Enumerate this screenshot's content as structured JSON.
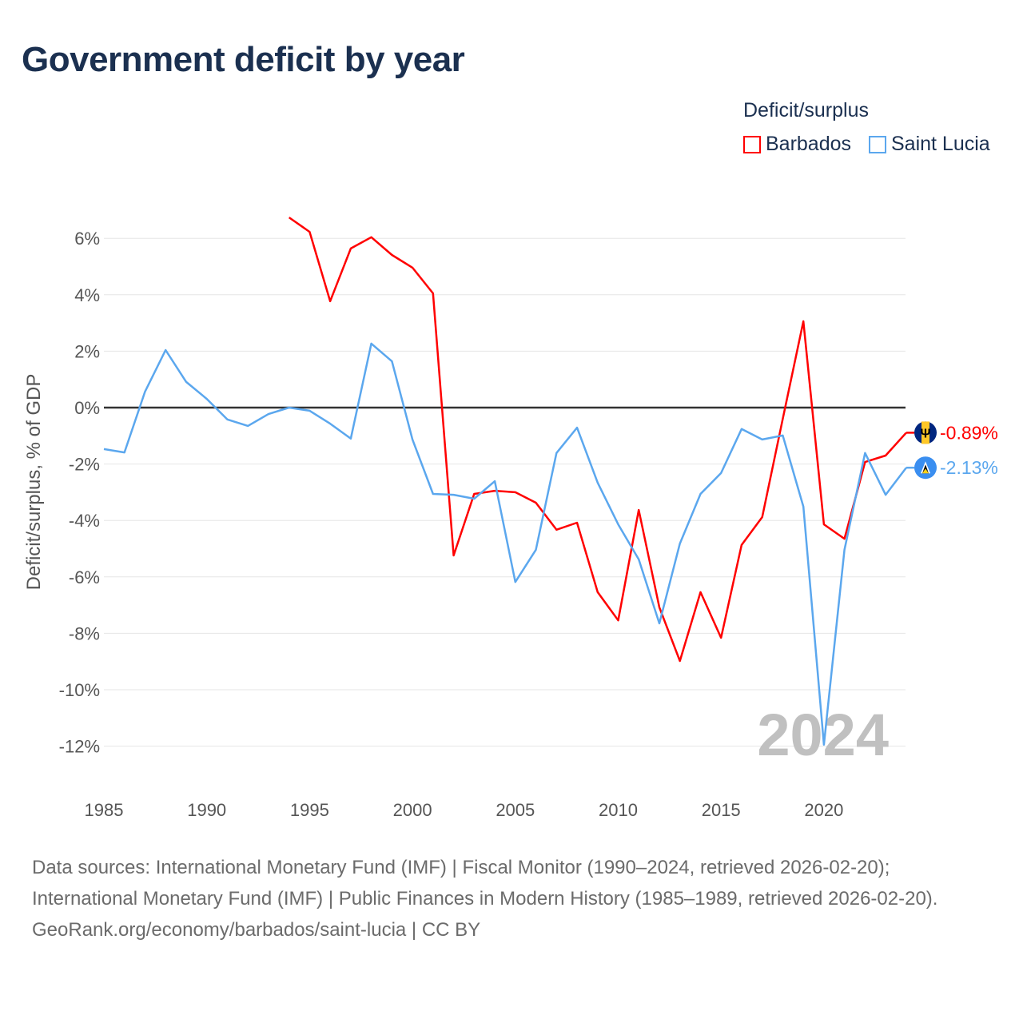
{
  "title": "Government deficit by year",
  "legend": {
    "title": "Deficit/surplus",
    "items": [
      "Barbados",
      "Saint Lucia"
    ]
  },
  "year_watermark": "2024",
  "footer": {
    "sources": "Data sources: International Monetary Fund (IMF) | Fiscal Monitor (1990–2024, retrieved 2026-02-20); International Monetary Fund (IMF) | Public Finances in Modern History (1985–1989, retrieved 2026-02-20).",
    "credit": "GeoRank.org/economy/barbados/saint-lucia | CC BY"
  },
  "chart_data": {
    "type": "line",
    "title": "Government deficit by year",
    "xlabel": "",
    "ylabel": "Deficit/surplus, % of GDP",
    "xlim": [
      1985,
      2024
    ],
    "ylim": [
      -12,
      6
    ],
    "xticks": [
      1985,
      1990,
      1995,
      2000,
      2005,
      2010,
      2015,
      2020
    ],
    "yticks": [
      6,
      4,
      2,
      0,
      -2,
      -4,
      -6,
      -8,
      -10,
      -12
    ],
    "ytick_labels": [
      "6%",
      "4%",
      "2%",
      "0%",
      "-2%",
      "-4%",
      "-6%",
      "-8%",
      "-10%",
      "-12%"
    ],
    "grid": true,
    "legend_position": "top-right",
    "series": [
      {
        "name": "Barbados",
        "color": "#ff0000",
        "end_label": "-0.89%",
        "flag": "barbados-flag-icon",
        "x": [
          1994,
          1995,
          1996,
          1997,
          1998,
          1999,
          2000,
          2001,
          2002,
          2003,
          2004,
          2005,
          2006,
          2007,
          2008,
          2009,
          2010,
          2011,
          2012,
          2013,
          2014,
          2015,
          2016,
          2017,
          2018,
          2019,
          2020,
          2021,
          2022,
          2023,
          2024
        ],
        "values": [
          6.74,
          6.23,
          3.77,
          5.64,
          6.04,
          5.41,
          4.96,
          4.05,
          -5.24,
          -3.06,
          -2.95,
          -3.0,
          -3.37,
          -4.33,
          -4.08,
          -6.54,
          -7.54,
          -3.63,
          -7.08,
          -8.98,
          -6.54,
          -8.16,
          -4.87,
          -3.88,
          -0.4,
          3.06,
          -4.14,
          -4.65,
          -1.93,
          -1.7,
          -0.89
        ]
      },
      {
        "name": "Saint Lucia",
        "color": "#5ba7ee",
        "end_label": "-2.13%",
        "flag": "saint-lucia-flag-icon",
        "x": [
          1985,
          1986,
          1987,
          1988,
          1989,
          1990,
          1991,
          1992,
          1993,
          1994,
          1995,
          1996,
          1997,
          1998,
          1999,
          2000,
          2001,
          2002,
          2003,
          2004,
          2005,
          2006,
          2007,
          2008,
          2009,
          2010,
          2011,
          2012,
          2013,
          2014,
          2015,
          2016,
          2017,
          2018,
          2019,
          2020,
          2021,
          2022,
          2023,
          2024
        ],
        "values": [
          -1.47,
          -1.59,
          0.57,
          2.04,
          0.91,
          0.31,
          -0.42,
          -0.65,
          -0.23,
          0.0,
          -0.11,
          -0.57,
          -1.1,
          2.27,
          1.64,
          -1.13,
          -3.06,
          -3.09,
          -3.23,
          -2.61,
          -6.18,
          -5.04,
          -1.61,
          -0.71,
          -2.66,
          -4.14,
          -5.38,
          -7.65,
          -4.82,
          -3.06,
          -2.32,
          -0.76,
          -1.13,
          -0.99,
          -3.51,
          -11.95,
          -5.04,
          -1.61,
          -3.09,
          -2.13
        ]
      }
    ]
  }
}
